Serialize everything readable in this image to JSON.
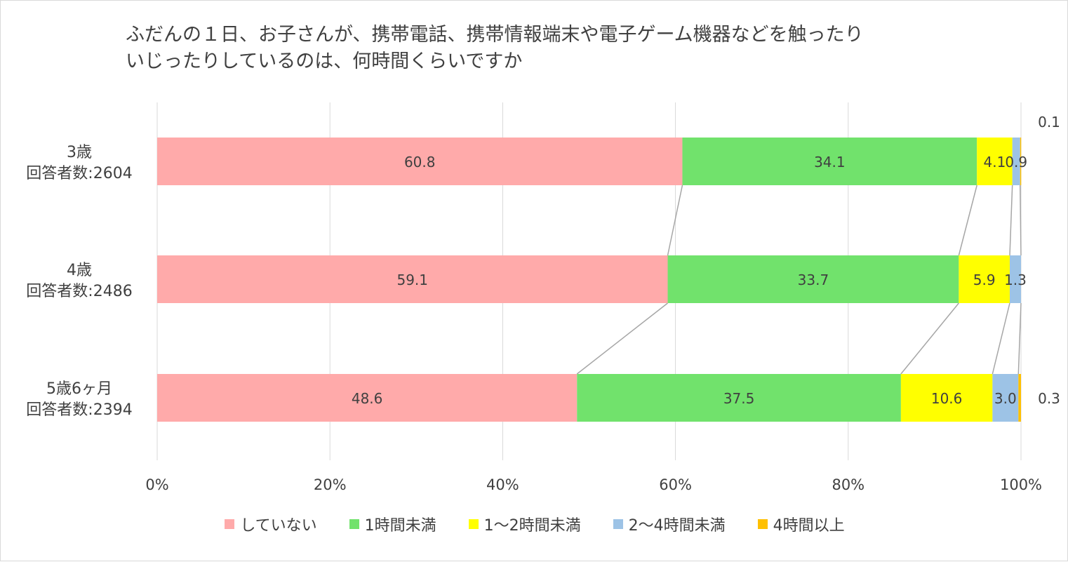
{
  "chart_data": {
    "type": "bar",
    "orientation": "horizontal",
    "stacked": "percent",
    "title": "ふだんの１日、お子さんが、携帯電話、携帯情報端末や電子ゲーム機器などを触ったり\nいじったりしているのは、何時間くらいですか",
    "categories": [
      {
        "line1": "3歳",
        "line2": "回答者数:2604"
      },
      {
        "line1": "4歳",
        "line2": "回答者数:2486"
      },
      {
        "line1": "5歳6ヶ月",
        "line2": "回答者数:2394"
      }
    ],
    "series": [
      {
        "name": "していない",
        "color": "#ffaaaa",
        "values": [
          60.8,
          59.1,
          48.6
        ]
      },
      {
        "name": "1時間未満",
        "color": "#71e26c",
        "values": [
          34.1,
          33.7,
          37.5
        ]
      },
      {
        "name": "1〜2時間未満",
        "color": "#ffff00",
        "values": [
          4.1,
          5.9,
          10.6
        ]
      },
      {
        "name": "2〜4時間未満",
        "color": "#9dc3e6",
        "values": [
          0.9,
          1.3,
          3.0
        ]
      },
      {
        "name": "4時間以上",
        "color": "#ffc000",
        "values": [
          0.1,
          0.0,
          0.3
        ]
      }
    ],
    "data_labels": [
      [
        "60.8",
        "34.1",
        "4.1",
        "0.9",
        "0.1"
      ],
      [
        "59.1",
        "33.7",
        "5.9",
        "1.3",
        ""
      ],
      [
        "48.6",
        "37.5",
        "10.6",
        "3.0",
        "0.3"
      ]
    ],
    "x_axis": {
      "range": [
        0,
        100
      ],
      "ticks": [
        0,
        20,
        40,
        60,
        80,
        100
      ],
      "tick_labels": [
        "0%",
        "20%",
        "40%",
        "60%",
        "80%",
        "100%"
      ]
    },
    "gridlines": true,
    "series_lines": true,
    "legend_position": "bottom"
  }
}
